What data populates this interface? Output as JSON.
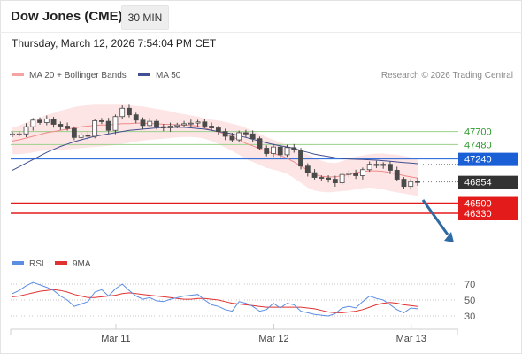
{
  "header": {
    "title": "Dow Jones (CME)",
    "timeframe": "30 MIN",
    "datetime": "Thursday, March 12, 2026 7:54:04 PM CET"
  },
  "legend": {
    "ma20_label": "MA 20 + Bollinger Bands",
    "ma50_label": "MA 50",
    "rsi_label": "RSI",
    "rsi_ma_label": "9MA",
    "credit": "Research © 2026 Trading Central"
  },
  "colors": {
    "bollinger_fill": "#fde2e2",
    "ma20": "#f08a8a",
    "ma50": "#3f4f8f",
    "candle": "#4a4a4a",
    "support_green": "#9bd08a",
    "green_label": "#2e9a2e",
    "pivot": "#1a5fd6",
    "target_red": "#e31b1b",
    "last_price": "#333333",
    "rsi": "#5b8de0",
    "rsi_ma": "#e03131",
    "arrow": "#2f6aa3"
  },
  "chart_data": [
    {
      "type": "line",
      "panel": "price",
      "y_range": [
        45900,
        48450
      ],
      "x_ticks": [
        {
          "label": "Mar 11",
          "bar": 15
        },
        {
          "label": "Mar 12",
          "bar": 38
        },
        {
          "label": "Mar 13",
          "bar": 58
        }
      ],
      "levels": [
        {
          "value": 47700,
          "label": "47700",
          "kind": "resistance"
        },
        {
          "value": 47480,
          "label": "47480",
          "kind": "resistance"
        },
        {
          "value": 47240,
          "label": "47240",
          "kind": "pivot"
        },
        {
          "value": 46854,
          "label": "46854",
          "kind": "last"
        },
        {
          "value": 46500,
          "label": "46500",
          "kind": "target"
        },
        {
          "value": 46330,
          "label": "46330",
          "kind": "target"
        }
      ],
      "close": [
        47660,
        47660,
        47780,
        47890,
        47850,
        47910,
        47820,
        47790,
        47750,
        47600,
        47640,
        47620,
        47880,
        47870,
        47720,
        47950,
        48090,
        47980,
        47890,
        47800,
        47870,
        47780,
        47760,
        47790,
        47810,
        47830,
        47840,
        47860,
        47790,
        47760,
        47700,
        47620,
        47560,
        47680,
        47660,
        47580,
        47420,
        47330,
        47440,
        47310,
        47430,
        47390,
        47120,
        47010,
        46930,
        46920,
        46900,
        46840,
        46980,
        47000,
        46960,
        47060,
        47150,
        47130,
        47150,
        47050,
        46900,
        46780,
        46860,
        46854
      ],
      "series": [
        {
          "name": "MA 20",
          "values": [
            47540,
            47560,
            47590,
            47620,
            47650,
            47680,
            47700,
            47720,
            47740,
            47760,
            47780,
            47790,
            47800,
            47810,
            47810,
            47820,
            47830,
            47830,
            47840,
            47840,
            47830,
            47830,
            47820,
            47820,
            47810,
            47810,
            47800,
            47790,
            47760,
            47720,
            47690,
            47660,
            47610,
            47560,
            47500,
            47460,
            47410,
            47370,
            47330,
            47300,
            47250,
            47190,
            47120,
            47050,
            46980,
            46950,
            46940,
            46940,
            46960,
            46980,
            47010,
            47030,
            47040,
            47040,
            47030,
            47010,
            46990,
            46960,
            46940,
            46920
          ]
        },
        {
          "name": "MA 50",
          "values": [
            47050,
            47110,
            47170,
            47230,
            47290,
            47350,
            47400,
            47450,
            47490,
            47530,
            47560,
            47590,
            47620,
            47640,
            47660,
            47680,
            47700,
            47720,
            47730,
            47740,
            47750,
            47760,
            47770,
            47770,
            47770,
            47770,
            47760,
            47750,
            47740,
            47720,
            47700,
            47680,
            47660,
            47630,
            47600,
            47570,
            47540,
            47510,
            47480,
            47460,
            47440,
            47420,
            47380,
            47350,
            47320,
            47300,
            47280,
            47260,
            47250,
            47240,
            47235,
            47230,
            47225,
            47220,
            47210,
            47200,
            47190,
            47180,
            47170,
            47160
          ]
        }
      ],
      "bollinger": {
        "upper": [
          47760,
          47800,
          47850,
          47890,
          47930,
          47980,
          48010,
          48050,
          48080,
          48110,
          48130,
          48140,
          48150,
          48150,
          48150,
          48150,
          48150,
          48140,
          48130,
          48120,
          48100,
          48080,
          48060,
          48040,
          48010,
          47990,
          47970,
          47950,
          47920,
          47900,
          47880,
          47860,
          47830,
          47800,
          47760,
          47710,
          47660,
          47610,
          47560,
          47520,
          47470,
          47420,
          47370,
          47320,
          47260,
          47210,
          47180,
          47170,
          47200,
          47240,
          47280,
          47300,
          47320,
          47330,
          47330,
          47320,
          47310,
          47290,
          47270,
          47240
        ],
        "lower": [
          47320,
          47320,
          47330,
          47350,
          47370,
          47380,
          47390,
          47390,
          47400,
          47410,
          47420,
          47430,
          47440,
          47450,
          47460,
          47470,
          47490,
          47510,
          47530,
          47550,
          47560,
          47570,
          47580,
          47590,
          47600,
          47610,
          47610,
          47600,
          47580,
          47540,
          47490,
          47430,
          47370,
          47310,
          47240,
          47190,
          47140,
          47090,
          47060,
          47030,
          46990,
          46920,
          46840,
          46760,
          46710,
          46690,
          46680,
          46690,
          46700,
          46710,
          46730,
          46750,
          46760,
          46750,
          46730,
          46700,
          46680,
          46660,
          46640,
          46620
        ]
      }
    },
    {
      "type": "line",
      "panel": "rsi",
      "y_range": [
        20,
        80
      ],
      "y_ticks": [
        70,
        50,
        30
      ],
      "series": [
        {
          "name": "RSI",
          "values": [
            58,
            62,
            68,
            72,
            69,
            66,
            62,
            55,
            50,
            42,
            45,
            48,
            60,
            63,
            55,
            64,
            70,
            62,
            55,
            51,
            53,
            49,
            48,
            51,
            53,
            55,
            56,
            57,
            50,
            44,
            42,
            38,
            36,
            48,
            46,
            42,
            36,
            38,
            46,
            40,
            46,
            44,
            36,
            34,
            32,
            31,
            30,
            33,
            40,
            42,
            40,
            48,
            55,
            52,
            50,
            44,
            38,
            34,
            40,
            39
          ]
        },
        {
          "name": "9MA",
          "values": [
            54,
            55,
            57,
            59,
            61,
            62,
            63,
            62,
            60,
            57,
            55,
            53,
            53,
            54,
            55,
            56,
            58,
            59,
            58,
            57,
            56,
            55,
            54,
            53,
            52,
            51,
            51,
            52,
            52,
            51,
            50,
            48,
            46,
            45,
            44,
            43,
            42,
            41,
            41,
            41,
            41,
            41,
            41,
            40,
            39,
            37,
            35,
            34,
            34,
            35,
            36,
            38,
            41,
            44,
            46,
            47,
            46,
            44,
            43,
            42
          ]
        }
      ]
    }
  ]
}
